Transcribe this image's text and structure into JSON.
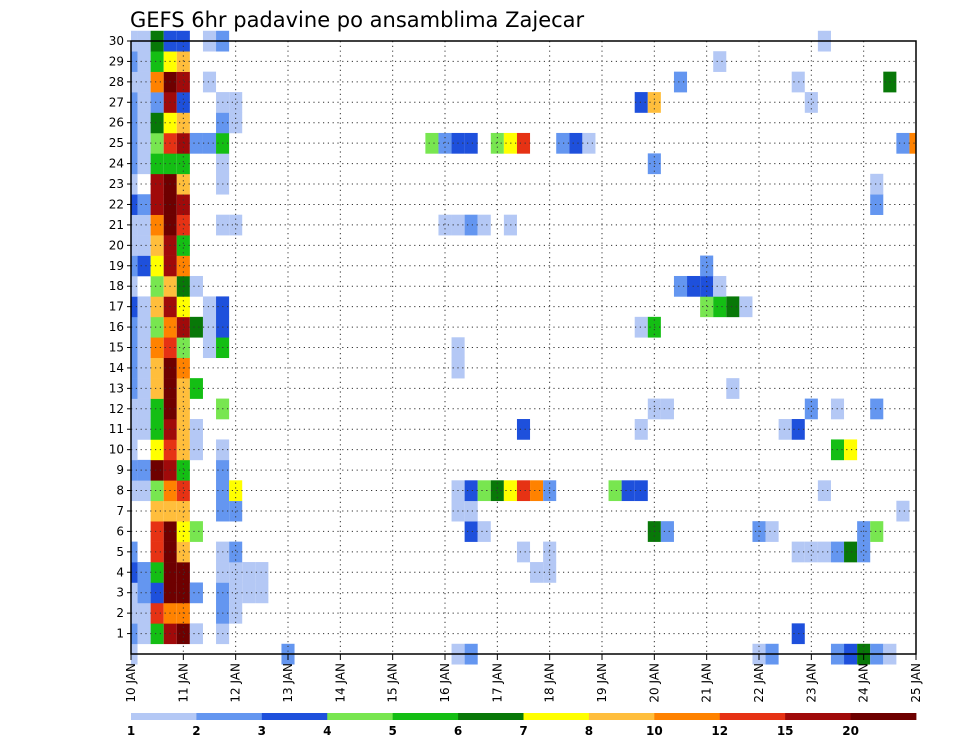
{
  "chart_data": {
    "type": "heatmap",
    "title": "GEFS 6hr padavine po ansamblima Zajecar",
    "xlabel": "",
    "ylabel": "",
    "x_unit": "6-hour step",
    "x_tick_labels": [
      "10 JAN",
      "11 JAN",
      "12 JAN",
      "13 JAN",
      "14 JAN",
      "15 JAN",
      "16 JAN",
      "17 JAN",
      "18 JAN",
      "19 JAN",
      "20 JAN",
      "21 JAN",
      "22 JAN",
      "23 JAN",
      "24 JAN",
      "25 JAN"
    ],
    "y_tick_labels": [
      "1",
      "2",
      "3",
      "4",
      "5",
      "6",
      "7",
      "8",
      "9",
      "10",
      "11",
      "12",
      "13",
      "14",
      "15",
      "16",
      "17",
      "18",
      "19",
      "20",
      "21",
      "22",
      "23",
      "24",
      "25",
      "26",
      "27",
      "28",
      "29",
      "30"
    ],
    "xlim": [
      0,
      60
    ],
    "ylim": [
      0,
      30
    ],
    "grid": true,
    "legend_position": "bottom",
    "color_scale": {
      "bins": [
        "#b4c8f5",
        "#6496f0",
        "#1e50dc",
        "#78e650",
        "#14be14",
        "#087808",
        "#ffff00",
        "#ffbe3c",
        "#ff8200",
        "#e63214",
        "#a00a0a",
        "#6e0000"
      ],
      "labels": [
        "1",
        "2",
        "3",
        "4",
        "5",
        "6",
        "7",
        "8",
        "10",
        "12",
        "15",
        "20"
      ]
    },
    "members": [
      {
        "member": 0,
        "cells": [
          [
            0,
            1
          ],
          [
            12,
            2
          ],
          [
            25,
            1
          ],
          [
            26,
            2
          ],
          [
            48,
            1
          ],
          [
            49,
            2
          ],
          [
            54,
            2
          ],
          [
            55,
            3
          ],
          [
            56,
            6
          ],
          [
            57,
            2
          ],
          [
            58,
            1
          ]
        ]
      },
      {
        "member": 1,
        "cells": [
          [
            0,
            2
          ],
          [
            1,
            1
          ],
          [
            2,
            5
          ],
          [
            3,
            11
          ],
          [
            4,
            12
          ],
          [
            5,
            1
          ],
          [
            7,
            1
          ],
          [
            51,
            3
          ]
        ]
      },
      {
        "member": 2,
        "cells": [
          [
            0,
            1
          ],
          [
            1,
            1
          ],
          [
            2,
            10
          ],
          [
            3,
            9
          ],
          [
            4,
            9
          ],
          [
            7,
            2
          ],
          [
            8,
            1
          ]
        ]
      },
      {
        "member": 3,
        "cells": [
          [
            0,
            1
          ],
          [
            1,
            2
          ],
          [
            2,
            3
          ],
          [
            3,
            12
          ],
          [
            4,
            12
          ],
          [
            5,
            2
          ],
          [
            7,
            2
          ],
          [
            8,
            1
          ],
          [
            9,
            1
          ],
          [
            10,
            1
          ]
        ]
      },
      {
        "member": 4,
        "cells": [
          [
            0,
            3
          ],
          [
            1,
            2
          ],
          [
            2,
            5
          ],
          [
            3,
            12
          ],
          [
            4,
            12
          ],
          [
            7,
            1
          ],
          [
            8,
            1
          ],
          [
            9,
            1
          ],
          [
            10,
            1
          ],
          [
            31,
            1
          ],
          [
            32,
            1
          ]
        ]
      },
      {
        "member": 5,
        "cells": [
          [
            0,
            2
          ],
          [
            2,
            10
          ],
          [
            3,
            12
          ],
          [
            4,
            8
          ],
          [
            7,
            1
          ],
          [
            8,
            2
          ],
          [
            30,
            1
          ],
          [
            32,
            1
          ],
          [
            51,
            1
          ],
          [
            52,
            1
          ],
          [
            53,
            1
          ],
          [
            54,
            2
          ],
          [
            55,
            6
          ],
          [
            56,
            2
          ]
        ]
      },
      {
        "member": 6,
        "cells": [
          [
            2,
            10
          ],
          [
            3,
            12
          ],
          [
            4,
            7
          ],
          [
            5,
            4
          ],
          [
            26,
            3
          ],
          [
            27,
            1
          ],
          [
            40,
            6
          ],
          [
            41,
            2
          ],
          [
            48,
            2
          ],
          [
            49,
            1
          ],
          [
            56,
            2
          ],
          [
            57,
            4
          ]
        ]
      },
      {
        "member": 7,
        "cells": [
          [
            2,
            8
          ],
          [
            3,
            8
          ],
          [
            4,
            8
          ],
          [
            7,
            2
          ],
          [
            8,
            2
          ],
          [
            25,
            1
          ],
          [
            26,
            1
          ],
          [
            59,
            1
          ]
        ]
      },
      {
        "member": 8,
        "cells": [
          [
            0,
            1
          ],
          [
            1,
            1
          ],
          [
            2,
            4
          ],
          [
            3,
            9
          ],
          [
            4,
            10
          ],
          [
            7,
            2
          ],
          [
            8,
            7
          ],
          [
            25,
            1
          ],
          [
            26,
            3
          ],
          [
            27,
            4
          ],
          [
            28,
            6
          ],
          [
            29,
            7
          ],
          [
            30,
            10
          ],
          [
            31,
            9
          ],
          [
            32,
            2
          ],
          [
            37,
            4
          ],
          [
            38,
            3
          ],
          [
            39,
            3
          ],
          [
            53,
            1
          ]
        ]
      },
      {
        "member": 9,
        "cells": [
          [
            0,
            2
          ],
          [
            1,
            2
          ],
          [
            2,
            12
          ],
          [
            3,
            11
          ],
          [
            4,
            5
          ],
          [
            7,
            2
          ]
        ]
      },
      {
        "member": 10,
        "cells": [
          [
            0,
            1
          ],
          [
            2,
            7
          ],
          [
            3,
            10
          ],
          [
            4,
            8
          ],
          [
            5,
            1
          ],
          [
            7,
            1
          ],
          [
            54,
            5
          ],
          [
            55,
            7
          ]
        ]
      },
      {
        "member": 11,
        "cells": [
          [
            0,
            1
          ],
          [
            1,
            1
          ],
          [
            2,
            5
          ],
          [
            3,
            11
          ],
          [
            4,
            8
          ],
          [
            5,
            1
          ],
          [
            30,
            3
          ],
          [
            39,
            1
          ],
          [
            50,
            1
          ],
          [
            51,
            3
          ]
        ]
      },
      {
        "member": 12,
        "cells": [
          [
            0,
            1
          ],
          [
            1,
            1
          ],
          [
            2,
            5
          ],
          [
            3,
            12
          ],
          [
            4,
            8
          ],
          [
            7,
            4
          ],
          [
            40,
            1
          ],
          [
            41,
            1
          ],
          [
            52,
            2
          ],
          [
            54,
            1
          ],
          [
            57,
            2
          ]
        ]
      },
      {
        "member": 13,
        "cells": [
          [
            0,
            2
          ],
          [
            1,
            1
          ],
          [
            2,
            8
          ],
          [
            3,
            12
          ],
          [
            4,
            8
          ],
          [
            5,
            5
          ],
          [
            46,
            1
          ]
        ]
      },
      {
        "member": 14,
        "cells": [
          [
            0,
            2
          ],
          [
            1,
            1
          ],
          [
            2,
            8
          ],
          [
            3,
            12
          ],
          [
            4,
            9
          ],
          [
            25,
            1
          ]
        ]
      },
      {
        "member": 15,
        "cells": [
          [
            0,
            2
          ],
          [
            1,
            1
          ],
          [
            2,
            9
          ],
          [
            3,
            10
          ],
          [
            4,
            4
          ],
          [
            6,
            1
          ],
          [
            7,
            5
          ],
          [
            25,
            1
          ]
        ]
      },
      {
        "member": 16,
        "cells": [
          [
            0,
            2
          ],
          [
            1,
            1
          ],
          [
            2,
            4
          ],
          [
            3,
            9
          ],
          [
            4,
            11
          ],
          [
            5,
            6
          ],
          [
            6,
            1
          ],
          [
            7,
            3
          ],
          [
            39,
            1
          ],
          [
            40,
            5
          ]
        ]
      },
      {
        "member": 17,
        "cells": [
          [
            0,
            3
          ],
          [
            1,
            1
          ],
          [
            2,
            8
          ],
          [
            3,
            11
          ],
          [
            4,
            7
          ],
          [
            6,
            1
          ],
          [
            7,
            3
          ],
          [
            44,
            4
          ],
          [
            45,
            5
          ],
          [
            46,
            6
          ],
          [
            47,
            1
          ]
        ]
      },
      {
        "member": 18,
        "cells": [
          [
            0,
            1
          ],
          [
            2,
            4
          ],
          [
            3,
            8
          ],
          [
            4,
            6
          ],
          [
            5,
            1
          ],
          [
            42,
            2
          ],
          [
            43,
            3
          ],
          [
            44,
            3
          ],
          [
            45,
            1
          ]
        ]
      },
      {
        "member": 19,
        "cells": [
          [
            0,
            2
          ],
          [
            1,
            3
          ],
          [
            2,
            7
          ],
          [
            3,
            11
          ],
          [
            4,
            9
          ],
          [
            44,
            2
          ]
        ]
      },
      {
        "member": 20,
        "cells": [
          [
            0,
            1
          ],
          [
            1,
            1
          ],
          [
            2,
            8
          ],
          [
            3,
            11
          ],
          [
            4,
            5
          ]
        ]
      },
      {
        "member": 21,
        "cells": [
          [
            0,
            1
          ],
          [
            1,
            1
          ],
          [
            2,
            9
          ],
          [
            3,
            12
          ],
          [
            4,
            10
          ],
          [
            7,
            1
          ],
          [
            8,
            1
          ],
          [
            24,
            1
          ],
          [
            25,
            1
          ],
          [
            26,
            2
          ],
          [
            27,
            1
          ],
          [
            29,
            1
          ]
        ]
      },
      {
        "member": 22,
        "cells": [
          [
            0,
            3
          ],
          [
            1,
            2
          ],
          [
            2,
            11
          ],
          [
            3,
            12
          ],
          [
            4,
            11
          ],
          [
            57,
            2
          ]
        ]
      },
      {
        "member": 23,
        "cells": [
          [
            0,
            1
          ],
          [
            2,
            11
          ],
          [
            3,
            12
          ],
          [
            4,
            8
          ],
          [
            7,
            1
          ],
          [
            57,
            1
          ]
        ]
      },
      {
        "member": 24,
        "cells": [
          [
            0,
            2
          ],
          [
            1,
            1
          ],
          [
            2,
            5
          ],
          [
            3,
            5
          ],
          [
            4,
            5
          ],
          [
            7,
            1
          ],
          [
            40,
            2
          ]
        ]
      },
      {
        "member": 25,
        "cells": [
          [
            0,
            2
          ],
          [
            1,
            1
          ],
          [
            2,
            4
          ],
          [
            3,
            10
          ],
          [
            4,
            11
          ],
          [
            5,
            2
          ],
          [
            6,
            2
          ],
          [
            7,
            5
          ],
          [
            23,
            4
          ],
          [
            24,
            2
          ],
          [
            25,
            3
          ],
          [
            26,
            3
          ],
          [
            28,
            4
          ],
          [
            29,
            7
          ],
          [
            30,
            10
          ],
          [
            33,
            2
          ],
          [
            34,
            3
          ],
          [
            35,
            1
          ],
          [
            59,
            2
          ],
          [
            60,
            9
          ]
        ]
      },
      {
        "member": 26,
        "cells": [
          [
            0,
            2
          ],
          [
            1,
            1
          ],
          [
            2,
            6
          ],
          [
            3,
            7
          ],
          [
            4,
            8
          ],
          [
            7,
            2
          ],
          [
            8,
            1
          ]
        ]
      },
      {
        "member": 27,
        "cells": [
          [
            0,
            2
          ],
          [
            1,
            1
          ],
          [
            2,
            2
          ],
          [
            3,
            11
          ],
          [
            4,
            3
          ],
          [
            7,
            1
          ],
          [
            8,
            1
          ],
          [
            39,
            3
          ],
          [
            40,
            8
          ],
          [
            52,
            1
          ]
        ]
      },
      {
        "member": 28,
        "cells": [
          [
            0,
            1
          ],
          [
            1,
            1
          ],
          [
            2,
            9
          ],
          [
            3,
            12
          ],
          [
            4,
            11
          ],
          [
            6,
            1
          ],
          [
            42,
            2
          ],
          [
            51,
            1
          ],
          [
            58,
            6
          ]
        ]
      },
      {
        "member": 29,
        "cells": [
          [
            0,
            2
          ],
          [
            1,
            1
          ],
          [
            2,
            5
          ],
          [
            3,
            7
          ],
          [
            4,
            8
          ],
          [
            45,
            1
          ]
        ]
      },
      {
        "member": 30,
        "cells": [
          [
            0,
            1
          ],
          [
            1,
            1
          ],
          [
            2,
            6
          ],
          [
            3,
            3
          ],
          [
            4,
            3
          ],
          [
            6,
            1
          ],
          [
            7,
            2
          ],
          [
            53,
            1
          ]
        ]
      }
    ]
  }
}
